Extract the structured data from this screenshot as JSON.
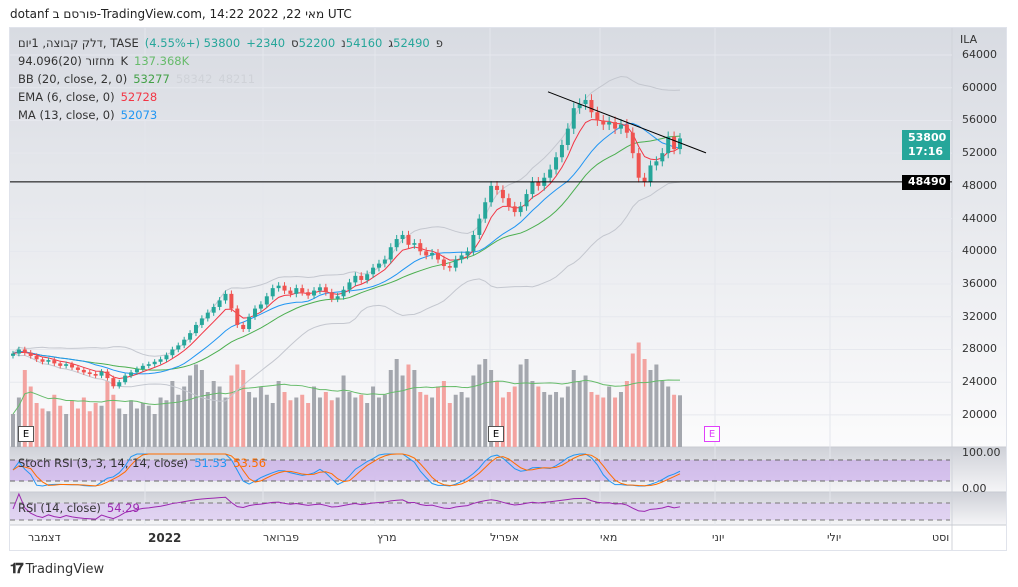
{
  "header": {
    "text": "dotanf פורסם ב-TradingView.com, מאי 22, 2022 14:22 UTC"
  },
  "legend": {
    "symbol": "דלק קבוצה, 1יום, TASE",
    "o_label": "פ",
    "o": "52490",
    "h_label": "ג",
    "h": "54160",
    "l_label": "נ",
    "l": "52200",
    "c_label": "ס",
    "c": "53800",
    "change": "+2340 (+4.55%)",
    "volume": {
      "label": "מחזור (20)",
      "value": "94.096K",
      "ma": "137.368K"
    },
    "bb": {
      "label": "BB (20, close, 2, 0)",
      "basis": "53277",
      "upper": "58342",
      "lower": "48211"
    },
    "ema": {
      "label": "EMA (6, close, 0)",
      "value": "52728"
    },
    "ma": {
      "label": "MA (13, close, 0)",
      "value": "52073"
    },
    "stoch": {
      "label": "Stoch RSI (3, 3, 14, 14, close)",
      "k": "51.53",
      "d": "53.56"
    },
    "rsi": {
      "label": "RSI (14, close)",
      "value": "54.29"
    }
  },
  "price_axis": {
    "currency": "ILA",
    "ticks": [
      "64000",
      "60000",
      "56000",
      "52000",
      "48000",
      "44000",
      "40000",
      "36000",
      "32000",
      "28000",
      "24000",
      "20000"
    ],
    "last_price": "53800",
    "countdown": "17:16",
    "hline": "48490"
  },
  "osc_axis": {
    "top": "100.00",
    "bottom": "0.00"
  },
  "time_axis": [
    "דצמבר",
    "2022",
    "פברואר",
    "מרץ",
    "אפריל",
    "מאי",
    "יוני",
    "יולי",
    "וסט"
  ],
  "events": [
    "E",
    "E",
    "E"
  ],
  "colors": {
    "up": "#26a69a",
    "down": "#ef5350",
    "ema": "#f23645",
    "ma": "#2196f3",
    "bb": "#4caf50",
    "stoch_k": "#2196f3",
    "stoch_d": "#ff6d00",
    "rsi": "#9c27b0"
  },
  "footer": {
    "brand": "TradingView"
  },
  "chart_data": {
    "type": "candlestick",
    "ylim": [
      16000,
      66000
    ],
    "closes": [
      27500,
      28000,
      27600,
      27200,
      26800,
      26500,
      26700,
      26300,
      26000,
      26200,
      25800,
      25500,
      25200,
      25000,
      24800,
      25300,
      24500,
      23500,
      24000,
      24800,
      25200,
      25600,
      26000,
      26200,
      26500,
      26800,
      27300,
      28000,
      28500,
      29200,
      30000,
      31000,
      31800,
      32500,
      33200,
      34000,
      34800,
      33000,
      31000,
      30500,
      32000,
      33000,
      33500,
      34500,
      35500,
      35800,
      35200,
      34800,
      35500,
      35000,
      34600,
      35200,
      35600,
      35000,
      34200,
      34500,
      35300,
      36200,
      37000,
      36500,
      37200,
      38000,
      38500,
      39000,
      40500,
      41500,
      42000,
      40800,
      41000,
      40000,
      39500,
      39800,
      39000,
      38200,
      38000,
      39000,
      39500,
      40000,
      42000,
      44000,
      46000,
      48000,
      47500,
      46500,
      45500,
      44800,
      45500,
      47000,
      48500,
      48000,
      49000,
      50000,
      51500,
      53000,
      55000,
      57500,
      58000,
      58500,
      57000,
      56000,
      55500,
      55800,
      55000,
      55500,
      54500,
      52000,
      49000,
      48500,
      50500,
      51000,
      52000,
      54000,
      52500,
      53800
    ],
    "volumes_k": [
      60,
      90,
      140,
      110,
      80,
      70,
      65,
      95,
      75,
      60,
      85,
      70,
      90,
      65,
      80,
      75,
      120,
      95,
      70,
      60,
      85,
      70,
      80,
      75,
      60,
      90,
      85,
      120,
      95,
      110,
      130,
      150,
      140,
      100,
      120,
      110,
      90,
      130,
      150,
      140,
      100,
      90,
      110,
      95,
      80,
      120,
      100,
      85,
      90,
      95,
      80,
      110,
      90,
      100,
      85,
      90,
      130,
      100,
      90,
      95,
      80,
      110,
      90,
      95,
      140,
      160,
      130,
      150,
      140,
      100,
      95,
      90,
      110,
      120,
      80,
      95,
      100,
      90,
      130,
      150,
      160,
      140,
      120,
      90,
      100,
      110,
      150,
      160,
      120,
      110,
      100,
      95,
      100,
      90,
      110,
      140,
      120,
      130,
      100,
      95,
      90,
      110,
      90,
      100,
      120,
      170,
      190,
      160,
      140,
      150,
      120,
      110,
      95,
      94
    ],
    "trendline": {
      "from_price": 59500,
      "to_price": 55700
    },
    "hline": 48490
  }
}
